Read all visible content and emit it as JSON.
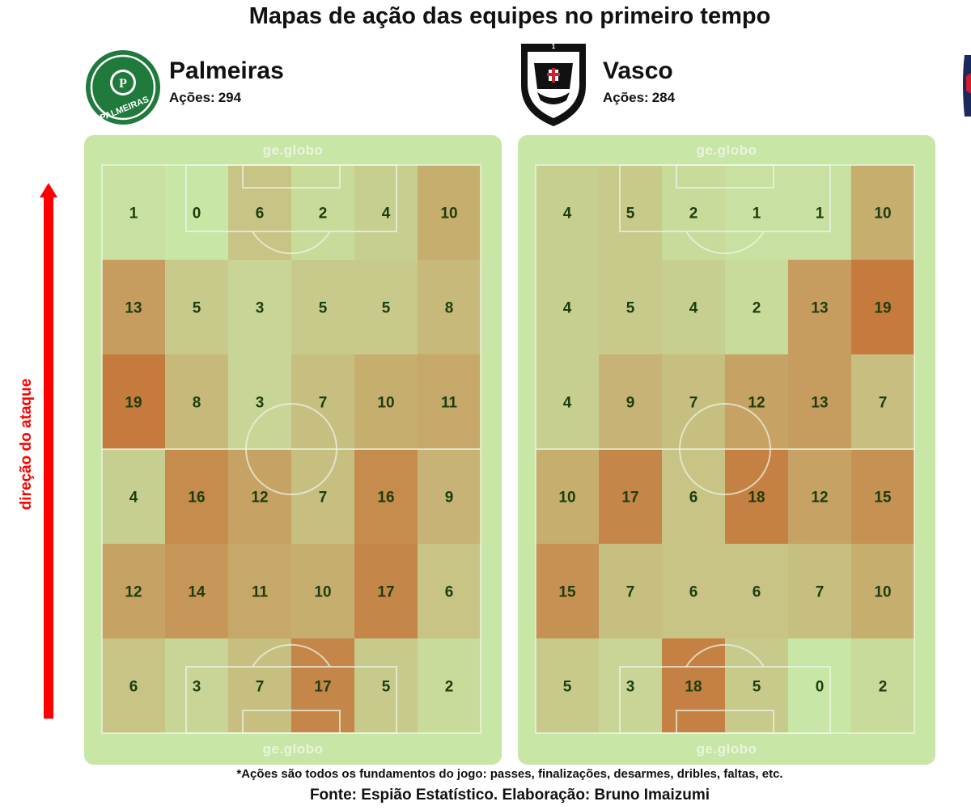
{
  "title": "Mapas de ação das equipes no primeiro tempo",
  "direction_label": "direção do ataque",
  "footnote": "*Ações são todos os fundamentos do jogo: passes, finalizações, desarmes, dribles, faltas, etc.",
  "source": "Fonte: Espião Estatístico. Elaboração: Bruno Imaizumi",
  "brand_text": "ge.globo",
  "colors": {
    "low": "#c8e6a6",
    "high": "#c57b3e",
    "cell_text": "#1e3d0c",
    "arrow": "#ff0000",
    "palmeiras_green": "#1f7a3c",
    "vasco_black": "#111111"
  },
  "teams": [
    {
      "name": "Palmeiras",
      "actions_label": "Ações:",
      "actions_value": "294",
      "logo_icon": "palmeiras-crest",
      "logo_text": "PALMEIRAS"
    },
    {
      "name": "Vasco",
      "actions_label": "Ações:",
      "actions_value": "284",
      "logo_icon": "vasco-crest"
    }
  ],
  "chart_data": [
    {
      "type": "heatmap",
      "team": "Palmeiras",
      "rows": 6,
      "cols": 6,
      "values": [
        [
          1,
          0,
          6,
          2,
          4,
          10
        ],
        [
          13,
          5,
          3,
          5,
          5,
          8
        ],
        [
          19,
          8,
          3,
          7,
          10,
          11
        ],
        [
          4,
          16,
          12,
          7,
          16,
          9
        ],
        [
          12,
          14,
          11,
          10,
          17,
          6
        ],
        [
          6,
          3,
          7,
          17,
          5,
          2
        ]
      ]
    },
    {
      "type": "heatmap",
      "team": "Vasco",
      "rows": 6,
      "cols": 6,
      "values": [
        [
          4,
          5,
          2,
          1,
          1,
          10
        ],
        [
          4,
          5,
          4,
          2,
          13,
          19
        ],
        [
          4,
          9,
          7,
          12,
          13,
          7
        ],
        [
          10,
          17,
          6,
          18,
          12,
          15
        ],
        [
          15,
          7,
          6,
          6,
          7,
          10
        ],
        [
          5,
          3,
          18,
          5,
          0,
          2
        ]
      ]
    }
  ]
}
